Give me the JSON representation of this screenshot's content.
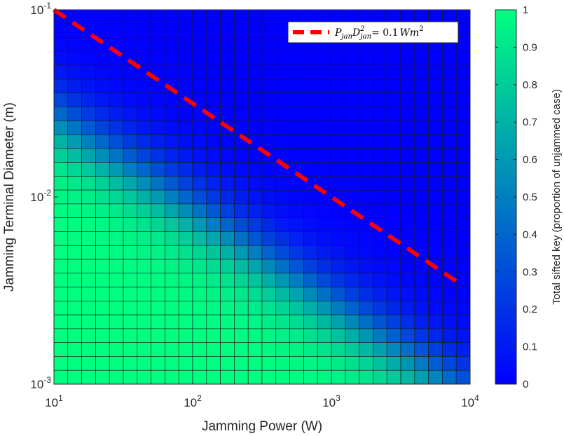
{
  "chart_data": {
    "type": "heatmap",
    "xlabel": "Jamming Power (W)",
    "ylabel": "Jamming Terminal Diameter (m)",
    "x_scale": "log",
    "y_scale": "log",
    "xlim": [
      10,
      10000
    ],
    "ylim": [
      0.001,
      0.1
    ],
    "x_ticks": [
      {
        "value": 10,
        "base": "10",
        "exp": "1"
      },
      {
        "value": 100,
        "base": "10",
        "exp": "2"
      },
      {
        "value": 1000,
        "base": "10",
        "exp": "3"
      },
      {
        "value": 10000,
        "base": "10",
        "exp": "4"
      }
    ],
    "y_ticks": [
      {
        "value": 0.001,
        "base": "10",
        "exp": "-3"
      },
      {
        "value": 0.01,
        "base": "10",
        "exp": "-2"
      },
      {
        "value": 0.1,
        "base": "10",
        "exp": "-1"
      }
    ],
    "grid_cols": 30,
    "grid_rows": 27,
    "colorbar": {
      "label": "Total sifted key (proportion of unjammed case)",
      "min": 0,
      "max": 1,
      "ticks": [
        "0",
        "0.1",
        "0.2",
        "0.3",
        "0.4",
        "0.5",
        "0.6",
        "0.7",
        "0.8",
        "0.9",
        "1"
      ],
      "color_low": "#0000ff",
      "color_high": "#00ff80"
    },
    "reference_line": {
      "description": "P_jan D_jan^2 = 0.1 W m^2",
      "constant": 0.1,
      "color": "#ff0000",
      "style": "dashed"
    },
    "legend": {
      "placement": "top-right",
      "label": "P_jan D_jan^2 = 0.1 W m^2",
      "math": {
        "p": "P",
        "p_sub": "jan",
        "d": "D",
        "d_sup": "2",
        "d_sub": "jan",
        "rhs": "= 0.1",
        "unit": "Wm",
        "unit_sup": "2"
      }
    }
  }
}
